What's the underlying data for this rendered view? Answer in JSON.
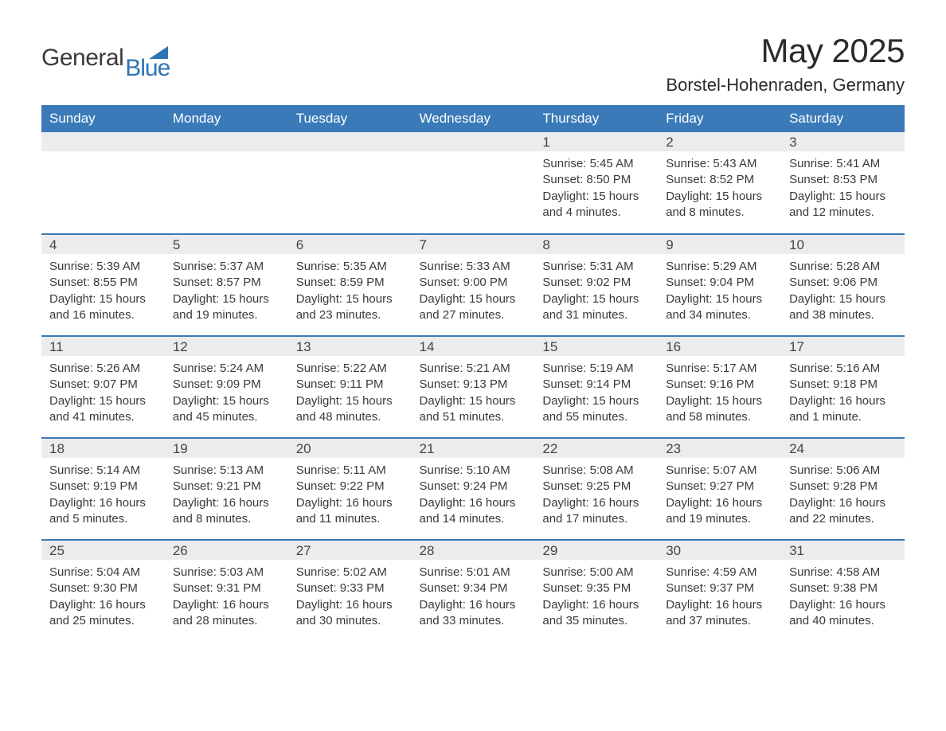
{
  "logo": {
    "general": "General",
    "blue": "Blue"
  },
  "title": "May 2025",
  "subtitle": "Borstel-Hohenraden, Germany",
  "colors": {
    "header_bg": "#3a7ab8",
    "header_text": "#ffffff",
    "daynum_bg": "#ececec",
    "week_rule": "#3a7ab8",
    "text": "#3a3a3a",
    "logo_blue": "#2e75b6",
    "background": "#ffffff"
  },
  "day_headers": [
    "Sunday",
    "Monday",
    "Tuesday",
    "Wednesday",
    "Thursday",
    "Friday",
    "Saturday"
  ],
  "weeks": [
    [
      {
        "n": "",
        "lines": []
      },
      {
        "n": "",
        "lines": []
      },
      {
        "n": "",
        "lines": []
      },
      {
        "n": "",
        "lines": []
      },
      {
        "n": "1",
        "lines": [
          "Sunrise: 5:45 AM",
          "Sunset: 8:50 PM",
          "Daylight: 15 hours and 4 minutes."
        ]
      },
      {
        "n": "2",
        "lines": [
          "Sunrise: 5:43 AM",
          "Sunset: 8:52 PM",
          "Daylight: 15 hours and 8 minutes."
        ]
      },
      {
        "n": "3",
        "lines": [
          "Sunrise: 5:41 AM",
          "Sunset: 8:53 PM",
          "Daylight: 15 hours and 12 minutes."
        ]
      }
    ],
    [
      {
        "n": "4",
        "lines": [
          "Sunrise: 5:39 AM",
          "Sunset: 8:55 PM",
          "Daylight: 15 hours and 16 minutes."
        ]
      },
      {
        "n": "5",
        "lines": [
          "Sunrise: 5:37 AM",
          "Sunset: 8:57 PM",
          "Daylight: 15 hours and 19 minutes."
        ]
      },
      {
        "n": "6",
        "lines": [
          "Sunrise: 5:35 AM",
          "Sunset: 8:59 PM",
          "Daylight: 15 hours and 23 minutes."
        ]
      },
      {
        "n": "7",
        "lines": [
          "Sunrise: 5:33 AM",
          "Sunset: 9:00 PM",
          "Daylight: 15 hours and 27 minutes."
        ]
      },
      {
        "n": "8",
        "lines": [
          "Sunrise: 5:31 AM",
          "Sunset: 9:02 PM",
          "Daylight: 15 hours and 31 minutes."
        ]
      },
      {
        "n": "9",
        "lines": [
          "Sunrise: 5:29 AM",
          "Sunset: 9:04 PM",
          "Daylight: 15 hours and 34 minutes."
        ]
      },
      {
        "n": "10",
        "lines": [
          "Sunrise: 5:28 AM",
          "Sunset: 9:06 PM",
          "Daylight: 15 hours and 38 minutes."
        ]
      }
    ],
    [
      {
        "n": "11",
        "lines": [
          "Sunrise: 5:26 AM",
          "Sunset: 9:07 PM",
          "Daylight: 15 hours and 41 minutes."
        ]
      },
      {
        "n": "12",
        "lines": [
          "Sunrise: 5:24 AM",
          "Sunset: 9:09 PM",
          "Daylight: 15 hours and 45 minutes."
        ]
      },
      {
        "n": "13",
        "lines": [
          "Sunrise: 5:22 AM",
          "Sunset: 9:11 PM",
          "Daylight: 15 hours and 48 minutes."
        ]
      },
      {
        "n": "14",
        "lines": [
          "Sunrise: 5:21 AM",
          "Sunset: 9:13 PM",
          "Daylight: 15 hours and 51 minutes."
        ]
      },
      {
        "n": "15",
        "lines": [
          "Sunrise: 5:19 AM",
          "Sunset: 9:14 PM",
          "Daylight: 15 hours and 55 minutes."
        ]
      },
      {
        "n": "16",
        "lines": [
          "Sunrise: 5:17 AM",
          "Sunset: 9:16 PM",
          "Daylight: 15 hours and 58 minutes."
        ]
      },
      {
        "n": "17",
        "lines": [
          "Sunrise: 5:16 AM",
          "Sunset: 9:18 PM",
          "Daylight: 16 hours and 1 minute."
        ]
      }
    ],
    [
      {
        "n": "18",
        "lines": [
          "Sunrise: 5:14 AM",
          "Sunset: 9:19 PM",
          "Daylight: 16 hours and 5 minutes."
        ]
      },
      {
        "n": "19",
        "lines": [
          "Sunrise: 5:13 AM",
          "Sunset: 9:21 PM",
          "Daylight: 16 hours and 8 minutes."
        ]
      },
      {
        "n": "20",
        "lines": [
          "Sunrise: 5:11 AM",
          "Sunset: 9:22 PM",
          "Daylight: 16 hours and 11 minutes."
        ]
      },
      {
        "n": "21",
        "lines": [
          "Sunrise: 5:10 AM",
          "Sunset: 9:24 PM",
          "Daylight: 16 hours and 14 minutes."
        ]
      },
      {
        "n": "22",
        "lines": [
          "Sunrise: 5:08 AM",
          "Sunset: 9:25 PM",
          "Daylight: 16 hours and 17 minutes."
        ]
      },
      {
        "n": "23",
        "lines": [
          "Sunrise: 5:07 AM",
          "Sunset: 9:27 PM",
          "Daylight: 16 hours and 19 minutes."
        ]
      },
      {
        "n": "24",
        "lines": [
          "Sunrise: 5:06 AM",
          "Sunset: 9:28 PM",
          "Daylight: 16 hours and 22 minutes."
        ]
      }
    ],
    [
      {
        "n": "25",
        "lines": [
          "Sunrise: 5:04 AM",
          "Sunset: 9:30 PM",
          "Daylight: 16 hours and 25 minutes."
        ]
      },
      {
        "n": "26",
        "lines": [
          "Sunrise: 5:03 AM",
          "Sunset: 9:31 PM",
          "Daylight: 16 hours and 28 minutes."
        ]
      },
      {
        "n": "27",
        "lines": [
          "Sunrise: 5:02 AM",
          "Sunset: 9:33 PM",
          "Daylight: 16 hours and 30 minutes."
        ]
      },
      {
        "n": "28",
        "lines": [
          "Sunrise: 5:01 AM",
          "Sunset: 9:34 PM",
          "Daylight: 16 hours and 33 minutes."
        ]
      },
      {
        "n": "29",
        "lines": [
          "Sunrise: 5:00 AM",
          "Sunset: 9:35 PM",
          "Daylight: 16 hours and 35 minutes."
        ]
      },
      {
        "n": "30",
        "lines": [
          "Sunrise: 4:59 AM",
          "Sunset: 9:37 PM",
          "Daylight: 16 hours and 37 minutes."
        ]
      },
      {
        "n": "31",
        "lines": [
          "Sunrise: 4:58 AM",
          "Sunset: 9:38 PM",
          "Daylight: 16 hours and 40 minutes."
        ]
      }
    ]
  ]
}
